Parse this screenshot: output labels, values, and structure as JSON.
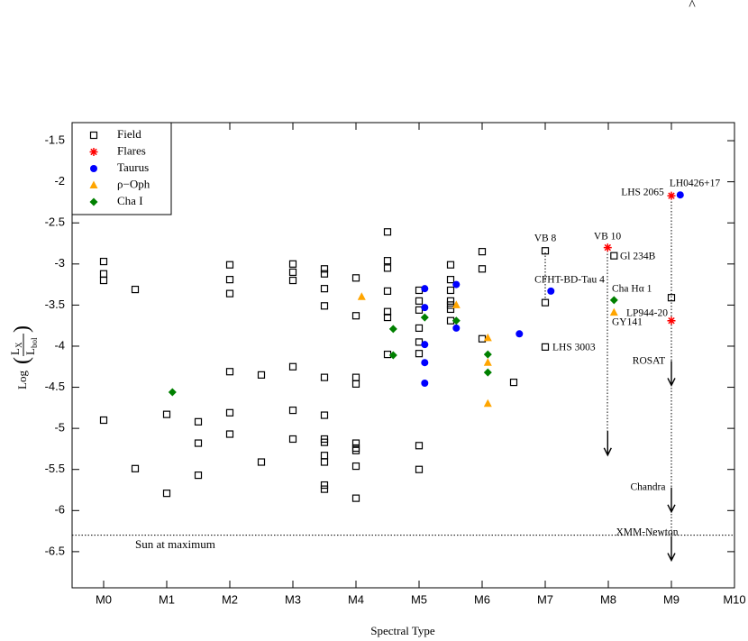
{
  "chart_data": {
    "type": "scatter",
    "mark": "^",
    "xlabel": "Spectral Type",
    "ylabel": {
      "prefix": "Log",
      "numerator": "L",
      "numerator_sub": "X",
      "denominator": "L",
      "denominator_sub": "bol"
    },
    "xlim": [
      -0.5,
      10
    ],
    "ylim": [
      -6.94,
      -1.28
    ],
    "xticks": [
      {
        "value": 0,
        "label": "M0"
      },
      {
        "value": 1,
        "label": "M1"
      },
      {
        "value": 2,
        "label": "M2"
      },
      {
        "value": 3,
        "label": "M3"
      },
      {
        "value": 4,
        "label": "M4"
      },
      {
        "value": 5,
        "label": "M5"
      },
      {
        "value": 6,
        "label": "M6"
      },
      {
        "value": 7,
        "label": "M7"
      },
      {
        "value": 8,
        "label": "M8"
      },
      {
        "value": 9,
        "label": "M9"
      },
      {
        "value": 10,
        "label": "M10"
      }
    ],
    "yticks": [
      -1.5,
      -2,
      -2.5,
      -3,
      -3.5,
      -4,
      -4.5,
      -5,
      -5.5,
      -6,
      -6.5
    ],
    "legend": "upper-left",
    "series": [
      {
        "name": "Field",
        "color": "#000000",
        "marker": "square",
        "x": [
          0,
          0,
          0,
          0,
          0.5,
          0.5,
          1,
          1,
          1.5,
          1.5,
          1.5,
          2,
          2,
          2,
          2,
          2,
          2,
          2.5,
          2.5,
          3,
          3,
          3,
          3,
          3,
          3,
          3.5,
          3.5,
          3.5,
          3.5,
          3.5,
          3.5,
          3.5,
          3.5,
          3.5,
          3.5,
          3.5,
          3.5,
          4,
          4,
          4,
          4,
          4,
          4,
          4,
          4,
          4,
          4.5,
          4.5,
          4.5,
          4.5,
          4.5,
          4.5,
          4.5,
          5,
          5,
          5,
          5,
          5,
          5,
          5,
          5,
          5.5,
          5.5,
          5.5,
          5.5,
          5.5,
          5.5,
          5.5,
          6,
          6,
          6,
          6.5,
          7,
          7,
          7,
          8.09,
          9
        ],
        "values": [
          -2.97,
          -3.12,
          -3.2,
          -4.9,
          -3.31,
          -5.49,
          -4.83,
          -5.79,
          -4.92,
          -5.18,
          -5.57,
          -3.01,
          -3.19,
          -3.36,
          -4.31,
          -4.81,
          -5.07,
          -4.35,
          -5.41,
          -3.0,
          -3.1,
          -3.2,
          -4.25,
          -4.78,
          -5.13,
          -3.06,
          -3.12,
          -3.3,
          -3.51,
          -4.38,
          -4.84,
          -5.13,
          -5.17,
          -5.33,
          -5.41,
          -5.69,
          -5.74,
          -3.17,
          -3.63,
          -4.38,
          -4.46,
          -5.18,
          -5.24,
          -5.27,
          -5.46,
          -5.85,
          -2.61,
          -2.96,
          -3.05,
          -3.33,
          -3.58,
          -3.65,
          -4.1,
          -3.32,
          -3.45,
          -3.56,
          -3.78,
          -3.95,
          -4.09,
          -5.21,
          -5.5,
          -3.01,
          -3.19,
          -3.32,
          -3.45,
          -3.5,
          -3.55,
          -3.69,
          -2.85,
          -3.06,
          -3.91,
          -4.44,
          -2.84,
          -3.47,
          -4.01,
          -2.9,
          -3.41
        ]
      },
      {
        "name": "Flares",
        "color": "#ff0000",
        "marker": "star",
        "x": [
          7.99,
          9,
          9
        ],
        "values": [
          -2.8,
          -2.17,
          -3.69
        ]
      },
      {
        "name": "Taurus",
        "color": "#0000ff",
        "marker": "circle",
        "x": [
          5.09,
          5.09,
          5.09,
          5.09,
          5.09,
          5.59,
          5.59,
          6.59,
          7.09,
          9.14
        ],
        "values": [
          -3.3,
          -3.53,
          -3.98,
          -4.2,
          -4.45,
          -3.25,
          -3.78,
          -3.85,
          -3.33,
          -2.16
        ]
      },
      {
        "name": "ρ−Oph",
        "color": "#ffa500",
        "marker": "triangle",
        "x": [
          4.09,
          5.59,
          6.09,
          6.09,
          6.09,
          8.09
        ],
        "values": [
          -3.4,
          -3.5,
          -3.9,
          -4.2,
          -4.7,
          -3.59
        ]
      },
      {
        "name": "Cha I",
        "color": "#008000",
        "marker": "diamond",
        "x": [
          1.09,
          4.59,
          4.59,
          5.09,
          5.59,
          6.09,
          6.09,
          8.09
        ],
        "values": [
          -4.56,
          -3.79,
          -4.11,
          -3.65,
          -3.69,
          -4.1,
          -4.32,
          -3.44
        ]
      }
    ],
    "upper_limits": {
      "x": [
        7.99,
        9,
        9,
        9
      ],
      "values": [
        -5.03,
        -4.18,
        -5.72,
        -6.31
      ]
    },
    "reference_line": {
      "value": -6.3,
      "label": "Sun at maximum"
    },
    "annotations": [
      "VB 8",
      "VB 10",
      "LHS 2065",
      "LH0426+17",
      "Gl 234B",
      "CFHT-BD-Tau 4",
      "Cha Hα 1",
      "GY141",
      "LP944-20",
      "LHS 3003",
      "ROSAT",
      "Chandra",
      "XMM-Newton"
    ]
  }
}
